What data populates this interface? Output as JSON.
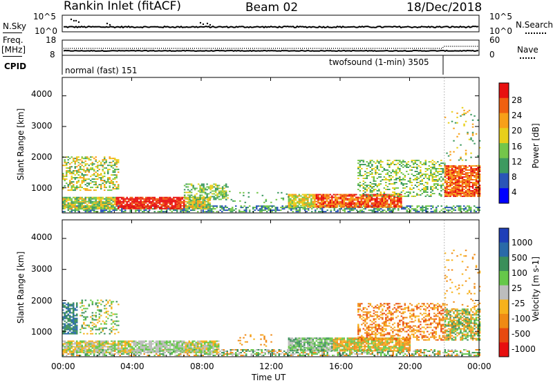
{
  "header": {
    "title": "Rankin Inlet (fitACF)",
    "beam": "Beam 02",
    "date": "18/Dec/2018"
  },
  "strip": {
    "nsky_label": "N.Sky",
    "nsearch_label": "N.Search",
    "nsky_ticks": [
      "10^5",
      "10^0"
    ],
    "nsearch_ticks": [
      "10^5",
      "10^0"
    ],
    "freq_label_1": "Freq.",
    "freq_label_2": "[MHz]",
    "freq_ticks": [
      "18",
      "8"
    ],
    "nave_label": "Nave",
    "nave_ticks": [
      "60",
      "0"
    ],
    "cpid_label": "CPID",
    "cpid_modes": [
      {
        "name": "normal (fast) 151",
        "start_hour": 0,
        "end_hour": 22.0
      },
      {
        "name": "twofsound (1-min) 3505",
        "start_hour": 22.0,
        "end_hour": 24
      }
    ]
  },
  "colors": {
    "power": [
      "#0000ff",
      "#2a55b8",
      "#3d9a60",
      "#74c64a",
      "#e8cf1a",
      "#f8a018",
      "#f06010",
      "#e81010"
    ],
    "velocity": [
      "#1f3fb8",
      "#2a6aa8",
      "#3b8f5a",
      "#66c84a",
      "#bdbdbd",
      "#f7b21c",
      "#f08a14",
      "#e84a10",
      "#e81010"
    ]
  },
  "chart_data": [
    {
      "type": "heatmap",
      "panel": "power",
      "ylabel": "Slant Range [km]",
      "colorbar_label": "Power [dB]",
      "colorbar_ticks": [
        "28",
        "24",
        "20",
        "16",
        "12",
        "8",
        "4"
      ],
      "colorbar_range": [
        0,
        32
      ],
      "y_ticks": [
        "4000",
        "3000",
        "2000",
        "1000"
      ],
      "ylim": [
        180,
        4600
      ],
      "xlim_hours": [
        0,
        24
      ]
    },
    {
      "type": "heatmap",
      "panel": "velocity",
      "ylabel": "Slant Range [km]",
      "colorbar_label": "Velocity [m s-1]",
      "colorbar_ticks": [
        "1000",
        "500",
        "100",
        "25",
        "-25",
        "-100",
        "-500",
        "-1000"
      ],
      "y_ticks": [
        "4000",
        "3000",
        "2000",
        "1000"
      ],
      "ylim": [
        180,
        4600
      ],
      "xlim_hours": [
        0,
        24
      ]
    }
  ],
  "xaxis": {
    "tick_labels": [
      "00:00",
      "04:00",
      "08:00",
      "12:00",
      "16:00",
      "20:00",
      "00:00"
    ],
    "label": "Time UT"
  }
}
